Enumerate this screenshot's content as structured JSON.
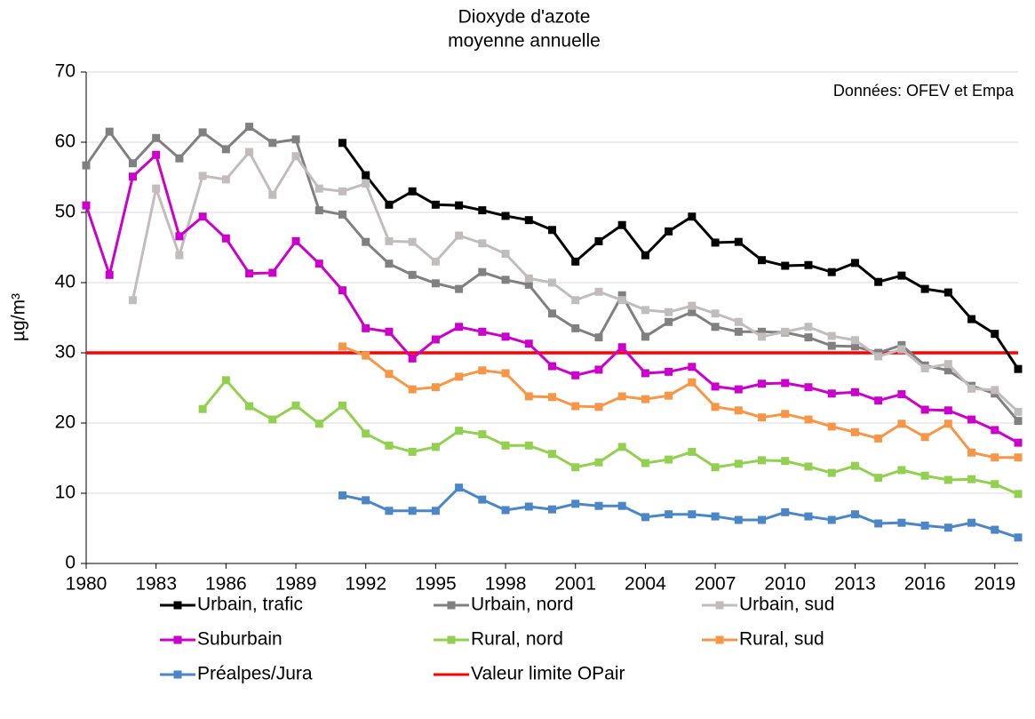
{
  "chart_data": {
    "type": "line",
    "title": "Dioxyde d'azote",
    "subtitle": "moyenne annuelle",
    "y_label": "µg/m³",
    "annotation": "Données: OFEV et Empa",
    "x": [
      1980,
      1981,
      1982,
      1983,
      1984,
      1985,
      1986,
      1987,
      1988,
      1989,
      1990,
      1991,
      1992,
      1993,
      1994,
      1995,
      1996,
      1997,
      1998,
      1999,
      2000,
      2001,
      2002,
      2003,
      2004,
      2005,
      2006,
      2007,
      2008,
      2009,
      2010,
      2011,
      2012,
      2013,
      2014,
      2015,
      2016,
      2017,
      2018,
      2019,
      2020
    ],
    "xlim": [
      1980,
      2020
    ],
    "xticks": [
      1980,
      1983,
      1986,
      1989,
      1992,
      1995,
      1998,
      2001,
      2004,
      2007,
      2010,
      2013,
      2016,
      2019
    ],
    "ylim": [
      0,
      70
    ],
    "yticks": [
      0,
      10,
      20,
      30,
      40,
      50,
      60,
      70
    ],
    "grid": true,
    "series": [
      {
        "name": "Urbain, trafic",
        "color": "#000000",
        "values": [
          null,
          null,
          null,
          null,
          null,
          null,
          null,
          null,
          null,
          null,
          null,
          59.9,
          55.3,
          51.1,
          53.0,
          51.1,
          51.0,
          50.3,
          49.5,
          48.9,
          47.5,
          43.0,
          45.9,
          48.2,
          43.9,
          47.3,
          49.4,
          45.7,
          45.8,
          43.2,
          42.4,
          42.5,
          41.5,
          42.8,
          40.1,
          41.0,
          39.1,
          38.6,
          34.8,
          32.7,
          27.7
        ]
      },
      {
        "name": "Urbain, nord",
        "color": "#808080",
        "values": [
          56.7,
          61.5,
          57.0,
          60.6,
          57.7,
          61.4,
          59.0,
          62.2,
          59.9,
          60.4,
          50.3,
          49.7,
          45.8,
          42.7,
          41.1,
          39.9,
          39.1,
          41.5,
          40.4,
          39.7,
          35.6,
          33.5,
          32.2,
          38.2,
          32.3,
          34.4,
          35.8,
          33.7,
          33.0,
          33.0,
          32.9,
          32.2,
          31.0,
          30.9,
          30.0,
          31.1,
          28.2,
          27.5,
          25.3,
          24.2,
          20.3
        ]
      },
      {
        "name": "Urbain, sud",
        "color": "#c3bcbc",
        "values": [
          null,
          null,
          37.5,
          53.4,
          43.9,
          55.2,
          54.7,
          58.6,
          52.5,
          58.0,
          53.4,
          53.0,
          54.1,
          45.9,
          45.8,
          43.0,
          46.7,
          45.6,
          44.1,
          40.6,
          40.0,
          37.5,
          38.7,
          37.5,
          36.1,
          35.8,
          36.7,
          35.6,
          34.4,
          32.3,
          33.0,
          33.7,
          32.4,
          31.8,
          29.5,
          30.5,
          27.8,
          28.4,
          24.9,
          24.7,
          21.6
        ]
      },
      {
        "name": "Suburbain",
        "color": "#cc00cc",
        "values": [
          51.0,
          41.1,
          55.1,
          58.2,
          46.6,
          49.4,
          46.3,
          41.3,
          41.4,
          45.9,
          42.7,
          38.9,
          33.5,
          33.0,
          29.2,
          31.9,
          33.7,
          33.0,
          32.3,
          31.3,
          28.1,
          26.8,
          27.6,
          30.8,
          27.1,
          27.3,
          28.0,
          25.2,
          24.8,
          25.6,
          25.7,
          25.1,
          24.2,
          24.4,
          23.2,
          24.1,
          21.9,
          21.8,
          20.5,
          19.0,
          17.2
        ]
      },
      {
        "name": "Rural, nord",
        "color": "#92d050",
        "values": [
          null,
          null,
          null,
          null,
          null,
          22.0,
          26.1,
          22.4,
          20.5,
          22.5,
          19.9,
          22.5,
          18.5,
          16.8,
          15.9,
          16.6,
          18.9,
          18.4,
          16.8,
          16.8,
          15.6,
          13.7,
          14.4,
          16.6,
          14.3,
          14.8,
          15.9,
          13.7,
          14.2,
          14.7,
          14.6,
          13.8,
          12.9,
          13.9,
          12.2,
          13.3,
          12.5,
          11.9,
          12.0,
          11.3,
          9.9
        ]
      },
      {
        "name": "Rural, sud",
        "color": "#f79646",
        "values": [
          null,
          null,
          null,
          null,
          null,
          null,
          null,
          null,
          null,
          null,
          null,
          30.9,
          29.6,
          27.0,
          24.8,
          25.1,
          26.6,
          27.5,
          27.1,
          23.8,
          23.7,
          22.4,
          22.3,
          23.8,
          23.4,
          23.9,
          25.8,
          22.3,
          21.8,
          20.8,
          21.3,
          20.5,
          19.5,
          18.7,
          17.8,
          19.9,
          18.0,
          19.9,
          15.8,
          15.1,
          15.1
        ]
      },
      {
        "name": "Préalpes/Jura",
        "color": "#4a86c8",
        "values": [
          null,
          null,
          null,
          null,
          null,
          null,
          null,
          null,
          null,
          null,
          null,
          9.7,
          9.0,
          7.5,
          7.5,
          7.5,
          10.8,
          9.1,
          7.6,
          8.1,
          7.7,
          8.5,
          8.2,
          8.2,
          6.6,
          7.0,
          7.0,
          6.7,
          6.2,
          6.2,
          7.3,
          6.7,
          6.2,
          7.0,
          5.7,
          5.8,
          5.4,
          5.1,
          5.8,
          4.8,
          3.7
        ]
      }
    ],
    "limit": {
      "name": "Valeur limite OPair",
      "color": "#ff0000",
      "value": 30
    }
  }
}
